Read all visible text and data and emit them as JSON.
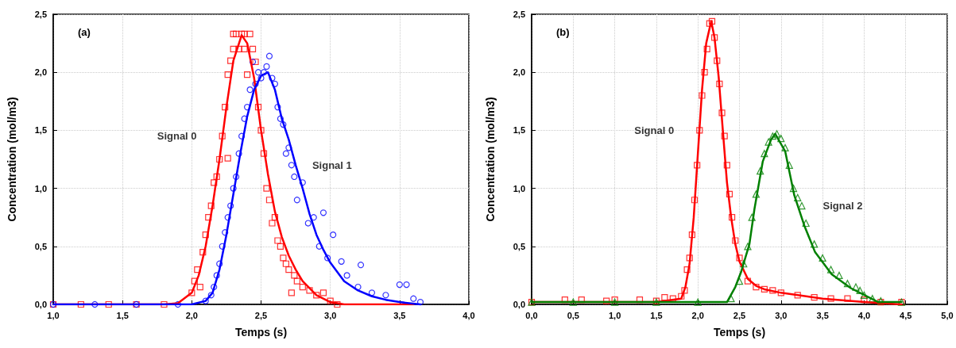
{
  "chart_data": [
    {
      "type": "scatter",
      "xlabel": "Temps (s)",
      "ylabel": "Concentration (mol/m3)",
      "annotations": [
        "(a)"
      ],
      "xlim": [
        1,
        4
      ],
      "ylim": [
        0,
        2.5
      ],
      "xticks": [
        {
          "value": 1,
          "label": "1,0"
        },
        {
          "value": 1.5,
          "label": "1,5"
        },
        {
          "value": 2,
          "label": "2,0"
        },
        {
          "value": 2.5,
          "label": "2,5"
        },
        {
          "value": 3,
          "label": "3,0"
        },
        {
          "value": 3.5,
          "label": "3,5"
        },
        {
          "value": 4,
          "label": "4,0"
        }
      ],
      "yticks": [
        {
          "value": 0,
          "label": "0,0"
        },
        {
          "value": 0.5,
          "label": "0,5"
        },
        {
          "value": 1,
          "label": "1,0"
        },
        {
          "value": 1.5,
          "label": "1,5"
        },
        {
          "value": 2,
          "label": "2,0"
        },
        {
          "value": 2.5,
          "label": "2,5"
        }
      ],
      "grid": true,
      "legend": false,
      "series": [
        {
          "name": "Signal 0",
          "type": "scatter",
          "marker": "square",
          "color": "#ff0000",
          "x": [
            1.0,
            1.2,
            1.4,
            1.6,
            1.8,
            1.95,
            2.0,
            2.02,
            2.04,
            2.06,
            2.08,
            2.1,
            2.12,
            2.14,
            2.16,
            2.18,
            2.2,
            2.22,
            2.24,
            2.26,
            2.26,
            2.28,
            2.3,
            2.3,
            2.32,
            2.34,
            2.36,
            2.38,
            2.38,
            2.4,
            2.42,
            2.44,
            2.46,
            2.48,
            2.5,
            2.52,
            2.54,
            2.56,
            2.58,
            2.6,
            2.62,
            2.64,
            2.66,
            2.68,
            2.7,
            2.72,
            2.74,
            2.76,
            2.78,
            2.8,
            2.85,
            2.9,
            2.95,
            3.0,
            3.05
          ],
          "values": [
            0,
            0,
            0,
            0,
            0,
            null,
            0.1,
            0.2,
            0.3,
            0.15,
            0.45,
            0.6,
            0.75,
            0.85,
            1.05,
            1.1,
            1.25,
            1.45,
            1.7,
            1.98,
            1.26,
            2.1,
            2.2,
            2.33,
            2.33,
            2.2,
            2.33,
            2.2,
            2.33,
            1.98,
            2.33,
            2.2,
            2.09,
            1.7,
            1.5,
            1.3,
            1.0,
            0.9,
            0.7,
            0.75,
            0.55,
            0.5,
            0.4,
            0.35,
            0.3,
            0.1,
            0.25,
            0.2,
            null,
            0.15,
            0.12,
            0.08,
            0.1,
            0.03,
            0
          ]
        },
        {
          "type": "line",
          "marker": "none",
          "color": "#ff0000",
          "x": [
            1.0,
            1.8,
            1.9,
            2.0,
            2.05,
            2.1,
            2.15,
            2.2,
            2.25,
            2.3,
            2.36,
            2.4,
            2.45,
            2.5,
            2.55,
            2.6,
            2.65,
            2.7,
            2.75,
            2.8,
            2.9,
            3.0,
            3.1,
            3.6
          ],
          "values": [
            0,
            0,
            0.01,
            0.1,
            0.25,
            0.5,
            0.85,
            1.25,
            1.7,
            2.1,
            2.32,
            2.25,
            1.95,
            1.5,
            1.12,
            0.8,
            0.58,
            0.42,
            0.3,
            0.2,
            0.08,
            0.02,
            0,
            0
          ]
        },
        {
          "name": "Signal 1",
          "type": "scatter",
          "marker": "circle",
          "color": "#0000ff",
          "x": [
            1.0,
            1.3,
            1.6,
            1.9,
            2.1,
            2.14,
            2.16,
            2.18,
            2.2,
            2.22,
            2.24,
            2.26,
            2.28,
            2.3,
            2.32,
            2.34,
            2.36,
            2.38,
            2.4,
            2.42,
            2.44,
            2.46,
            2.48,
            2.5,
            2.52,
            2.54,
            2.56,
            2.58,
            2.6,
            2.62,
            2.64,
            2.66,
            2.68,
            2.7,
            2.72,
            2.74,
            2.76,
            2.8,
            2.84,
            2.88,
            2.92,
            2.95,
            2.98,
            3.02,
            3.08,
            3.12,
            3.2,
            3.22,
            3.3,
            3.4,
            3.5,
            3.55,
            3.6,
            3.65
          ],
          "values": [
            0,
            0,
            0,
            0,
            0.03,
            0.08,
            0.15,
            0.25,
            0.35,
            0.5,
            0.62,
            0.75,
            0.85,
            1.0,
            1.1,
            1.3,
            1.45,
            1.6,
            1.7,
            1.85,
            2.09,
            1.9,
            2.0,
            1.95,
            2.0,
            2.05,
            2.14,
            1.95,
            1.9,
            1.7,
            1.6,
            1.55,
            1.3,
            1.35,
            1.2,
            1.1,
            0.9,
            1.05,
            0.7,
            0.75,
            0.5,
            0.79,
            0.4,
            0.6,
            0.37,
            0.25,
            0.15,
            0.34,
            0.1,
            0.08,
            0.17,
            0.17,
            0.05,
            0.02
          ]
        },
        {
          "type": "line",
          "marker": "none",
          "color": "#0000ff",
          "x": [
            1.0,
            2.0,
            2.1,
            2.15,
            2.2,
            2.25,
            2.3,
            2.35,
            2.4,
            2.45,
            2.5,
            2.55,
            2.6,
            2.65,
            2.7,
            2.75,
            2.8,
            2.85,
            2.9,
            2.95,
            3.0,
            3.1,
            3.2,
            3.3,
            3.4,
            3.5,
            3.65
          ],
          "values": [
            0,
            0,
            0.03,
            0.1,
            0.3,
            0.6,
            0.95,
            1.3,
            1.62,
            1.85,
            1.97,
            2.0,
            1.85,
            1.6,
            1.42,
            1.2,
            1.0,
            0.78,
            0.6,
            0.47,
            0.36,
            0.2,
            0.12,
            0.07,
            0.04,
            0.02,
            0
          ]
        }
      ]
    },
    {
      "type": "scatter",
      "xlabel": "Temps (s)",
      "ylabel": "Concentration (mol/m3)",
      "annotations": [
        "(b)"
      ],
      "xlim": [
        0,
        5
      ],
      "ylim": [
        0,
        2.5
      ],
      "xticks": [
        {
          "value": 0,
          "label": "0,0"
        },
        {
          "value": 0.5,
          "label": "0,5"
        },
        {
          "value": 1,
          "label": "1,0"
        },
        {
          "value": 1.5,
          "label": "1,5"
        },
        {
          "value": 2,
          "label": "2,0"
        },
        {
          "value": 2.5,
          "label": "2,5"
        },
        {
          "value": 3,
          "label": "3,0"
        },
        {
          "value": 3.5,
          "label": "3,5"
        },
        {
          "value": 4,
          "label": "4,0"
        },
        {
          "value": 4.5,
          "label": "4,5"
        },
        {
          "value": 5,
          "label": "5,0"
        }
      ],
      "yticks": [
        {
          "value": 0,
          "label": "0,0"
        },
        {
          "value": 0.5,
          "label": "0,5"
        },
        {
          "value": 1,
          "label": "1,0"
        },
        {
          "value": 1.5,
          "label": "1,5"
        },
        {
          "value": 2,
          "label": "2,0"
        },
        {
          "value": 2.5,
          "label": "2,5"
        }
      ],
      "grid": true,
      "legend": false,
      "series": [
        {
          "name": "Signal 0",
          "type": "scatter",
          "marker": "square",
          "color": "#ff0000",
          "x": [
            0,
            0.4,
            0.6,
            0.9,
            1.0,
            1.3,
            1.5,
            1.6,
            1.7,
            1.8,
            1.84,
            1.87,
            1.9,
            1.93,
            1.96,
            1.99,
            2.02,
            2.05,
            2.08,
            2.11,
            2.14,
            2.17,
            2.2,
            2.23,
            2.26,
            2.29,
            2.32,
            2.35,
            2.38,
            2.41,
            2.45,
            2.5,
            2.55,
            2.6,
            2.7,
            2.8,
            2.9,
            3.0,
            3.2,
            3.4,
            3.6,
            3.8,
            4.0,
            4.2,
            4.45
          ],
          "values": [
            0.02,
            0.04,
            0.04,
            0.03,
            0.04,
            0.04,
            0.03,
            0.06,
            0.05,
            0.07,
            0.12,
            0.3,
            0.4,
            0.6,
            0.9,
            1.2,
            1.5,
            1.8,
            2.0,
            2.2,
            2.42,
            2.44,
            2.3,
            2.1,
            1.9,
            1.65,
            1.45,
            1.2,
            0.95,
            0.75,
            0.55,
            0.4,
            null,
            0.2,
            0.15,
            0.13,
            0.12,
            0.1,
            0.08,
            0.06,
            0.05,
            0.05,
            0.04,
            0.02,
            0.02
          ]
        },
        {
          "type": "line",
          "marker": "none",
          "color": "#ff0000",
          "x": [
            0,
            1.5,
            1.8,
            1.85,
            1.9,
            1.95,
            2.0,
            2.05,
            2.1,
            2.16,
            2.2,
            2.25,
            2.3,
            2.35,
            2.4,
            2.45,
            2.5,
            2.6,
            2.7,
            2.8,
            3.0,
            3.5,
            4.0,
            4.45
          ],
          "values": [
            0.02,
            0.02,
            0.05,
            0.15,
            0.35,
            0.75,
            1.3,
            1.85,
            2.25,
            2.44,
            2.3,
            1.96,
            1.5,
            1.05,
            0.75,
            0.52,
            0.37,
            0.22,
            0.16,
            0.13,
            0.1,
            0.05,
            0.02,
            0
          ]
        },
        {
          "name": "Signal 2",
          "type": "scatter",
          "marker": "triangle",
          "color": "#008000",
          "x": [
            0,
            0.5,
            1.0,
            1.5,
            2.0,
            2.4,
            2.5,
            2.55,
            2.6,
            2.65,
            2.7,
            2.75,
            2.8,
            2.85,
            2.9,
            2.95,
            3.0,
            3.05,
            3.1,
            3.15,
            3.2,
            3.25,
            3.3,
            3.4,
            3.5,
            3.6,
            3.7,
            3.8,
            3.9,
            3.95,
            4.0,
            4.1,
            4.2,
            4.45
          ],
          "values": [
            0.02,
            0.02,
            0.02,
            0.02,
            0.02,
            0.05,
            0.2,
            0.35,
            0.5,
            0.75,
            0.95,
            1.15,
            1.3,
            1.4,
            1.45,
            1.47,
            1.43,
            1.35,
            1.2,
            1.0,
            0.92,
            0.85,
            0.7,
            0.52,
            0.4,
            0.3,
            0.25,
            0.18,
            0.15,
            0.12,
            0.08,
            0.05,
            0.03,
            0.02
          ]
        },
        {
          "type": "line",
          "marker": "none",
          "color": "#008000",
          "x": [
            0,
            2.35,
            2.45,
            2.52,
            2.62,
            2.68,
            2.78,
            2.88,
            2.93,
            3.05,
            3.16,
            3.28,
            3.41,
            3.61,
            3.84,
            4.17,
            4.45
          ],
          "values": [
            0.02,
            0.02,
            0.15,
            0.28,
            0.52,
            0.82,
            1.23,
            1.42,
            1.47,
            1.32,
            0.94,
            0.68,
            0.45,
            0.26,
            0.14,
            0.02,
            0.02
          ]
        }
      ]
    }
  ]
}
